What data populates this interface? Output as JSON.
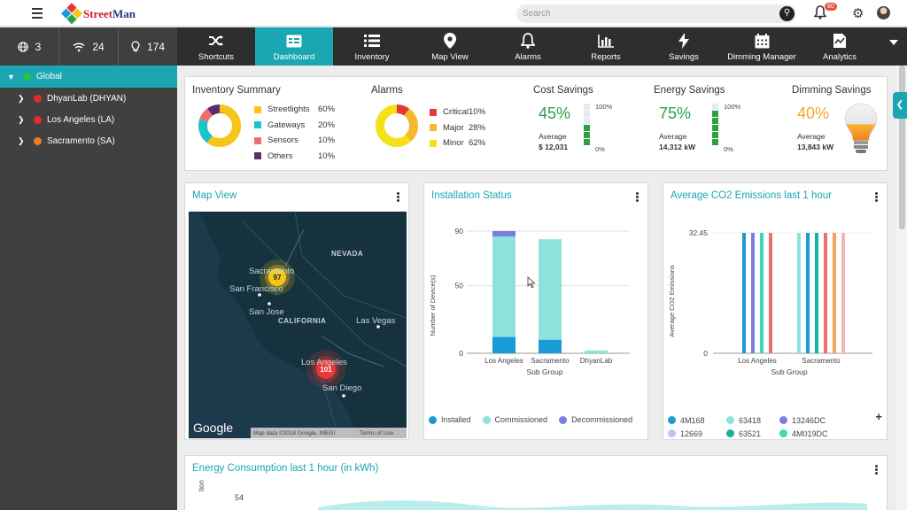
{
  "app": {
    "logo_text_1": "Street",
    "logo_text_2": "Man"
  },
  "search": {
    "placeholder": "Search"
  },
  "notifications": {
    "count": "80"
  },
  "stats": [
    {
      "icon": "globe-icon",
      "value": "3"
    },
    {
      "icon": "wifi-icon",
      "value": "24"
    },
    {
      "icon": "bulb-icon",
      "value": "174"
    }
  ],
  "nav": [
    {
      "label": "Shortcuts",
      "icon": "shuffle-icon"
    },
    {
      "label": "Dashboard",
      "icon": "dashboard-icon"
    },
    {
      "label": "Inventory",
      "icon": "list-icon"
    },
    {
      "label": "Map View",
      "icon": "map-pin-icon"
    },
    {
      "label": "Alarms",
      "icon": "bell-icon"
    },
    {
      "label": "Reports",
      "icon": "bar-chart-icon"
    },
    {
      "label": "Savings",
      "icon": "lightning-icon"
    },
    {
      "label": "Dimming Manager",
      "icon": "calendar-icon"
    },
    {
      "label": "Analytics",
      "icon": "analytics-icon"
    }
  ],
  "sidebar": {
    "items": [
      {
        "label": "Global",
        "color": "#22c34a"
      },
      {
        "label": "DhyanLab (DHYAN)",
        "color": "#e22b2b"
      },
      {
        "label": "Los Angeles (LA)",
        "color": "#e22b2b"
      },
      {
        "label": "Sacramento (SA)",
        "color": "#f07d1e"
      }
    ]
  },
  "inventory_summary": {
    "title": "Inventory Summary",
    "items": [
      {
        "label": "Streetlights",
        "pct": "60%",
        "value": 60,
        "color": "#f5c518"
      },
      {
        "label": "Gateways",
        "pct": "20%",
        "value": 20,
        "color": "#1ac4c8"
      },
      {
        "label": "Sensors",
        "pct": "10%",
        "value": 10,
        "color": "#f26d6d"
      },
      {
        "label": "Others",
        "pct": "10%",
        "value": 10,
        "color": "#5b2d6e"
      }
    ]
  },
  "alarms": {
    "title": "Alarms",
    "items": [
      {
        "label": "Critical",
        "pct": "10%",
        "value": 10,
        "color": "#e53935"
      },
      {
        "label": "Major",
        "pct": "28%",
        "value": 28,
        "color": "#f5b82e"
      },
      {
        "label": "Minor",
        "pct": "62%",
        "value": 62,
        "color": "#f5e11a"
      }
    ]
  },
  "cost_savings": {
    "title": "Cost Savings",
    "pct": "45%",
    "avg_label": "Average",
    "avg_value": "$ 12,031",
    "top": "100%",
    "bottom": "0%",
    "level": 0.45
  },
  "energy_savings": {
    "title": "Energy Savings",
    "pct": "75%",
    "avg_label": "Average",
    "avg_value": "14,312 kW",
    "top": "100%",
    "bottom": "0%",
    "level": 0.75
  },
  "dimming_savings": {
    "title": "Dimming Savings",
    "pct": "40%",
    "avg_label": "Average",
    "avg_value": "13,843 kW"
  },
  "map_view": {
    "title": "Map View",
    "labels": {
      "nevada": "NEVADA",
      "california": "CALIFORNIA",
      "sacramento": "Sacramento",
      "san_francisco": "San Francisco",
      "san_jose": "San Jose",
      "las_vegas": "Las Vegas",
      "los_angeles": "Los Angeles",
      "san_diego": "San Diego"
    },
    "cluster_sac": "97",
    "cluster_la": "101",
    "google": "Google",
    "attribution": "Map data ©2018 Google, INEGI",
    "terms": "Terms of Use"
  },
  "installation_status": {
    "title": "Installation Status",
    "xlabel": "Sub Group",
    "ylabel": "Number of Device(s)",
    "legend": [
      {
        "label": "Installed",
        "color": "#1a9ad6"
      },
      {
        "label": "Commissioned",
        "color": "#8de2dc"
      },
      {
        "label": "Decommissioned",
        "color": "#7b7de0"
      }
    ]
  },
  "co2": {
    "title": "Average CO2 Emissions last 1 hour",
    "xlabel": "Sub Group",
    "ylabel": "Average CO2 Emissions",
    "legend": [
      {
        "label": "4M168",
        "color": "#1a9ad6"
      },
      {
        "label": "63418",
        "color": "#8de2dc"
      },
      {
        "label": "13246DC",
        "color": "#7b7de0"
      },
      {
        "label": "12669",
        "color": "#b9c6f2"
      },
      {
        "label": "63521",
        "color": "#16b3a0"
      },
      {
        "label": "4M019DC",
        "color": "#3fd6b8"
      }
    ],
    "plus": "+"
  },
  "energy_consumption": {
    "title": "Energy Consumption last 1 hour (in kWh)",
    "tick": "54",
    "ylabel": "tion"
  },
  "chart_data": [
    {
      "type": "bar",
      "title": "Installation Status",
      "xlabel": "Sub Group",
      "ylabel": "Number of Device(s)",
      "categories": [
        "Los Angeles",
        "Sacramento",
        "DhyanLab"
      ],
      "series": [
        {
          "name": "Installed",
          "values": [
            12,
            10,
            0
          ]
        },
        {
          "name": "Commissioned",
          "values": [
            74,
            74,
            2
          ]
        },
        {
          "name": "Decommissioned",
          "values": [
            4,
            0,
            0
          ]
        }
      ],
      "yticks": [
        "0",
        "50",
        "90"
      ],
      "ylim": [
        0,
        90
      ]
    },
    {
      "type": "bar",
      "title": "Average CO2 Emissions last 1 hour",
      "xlabel": "Sub Group",
      "ylabel": "Average CO2 Emissions",
      "categories": [
        "Los Angeles",
        "Sacramento"
      ],
      "groups": [
        {
          "category": "Los Angeles",
          "bars": [
            {
              "color": "#1a9ad6",
              "value": 32.45
            },
            {
              "color": "#7b7de0",
              "value": 32.45
            },
            {
              "color": "#3fd6b8",
              "value": 32.45
            },
            {
              "color": "#f26d6d",
              "value": 32.45
            }
          ]
        },
        {
          "category": "Sacramento",
          "bars": [
            {
              "color": "#8de2dc",
              "value": 32.45
            },
            {
              "color": "#1a9ad6",
              "value": 32.45
            },
            {
              "color": "#16b3a0",
              "value": 32.45
            },
            {
              "color": "#f26d6d",
              "value": 32.45
            },
            {
              "color": "#f5a25e",
              "value": 32.45
            },
            {
              "color": "#f4b6b0",
              "value": 32.45
            }
          ]
        }
      ],
      "yticks": [
        "0",
        "32.45"
      ],
      "ylim": [
        0,
        32.45
      ]
    }
  ]
}
